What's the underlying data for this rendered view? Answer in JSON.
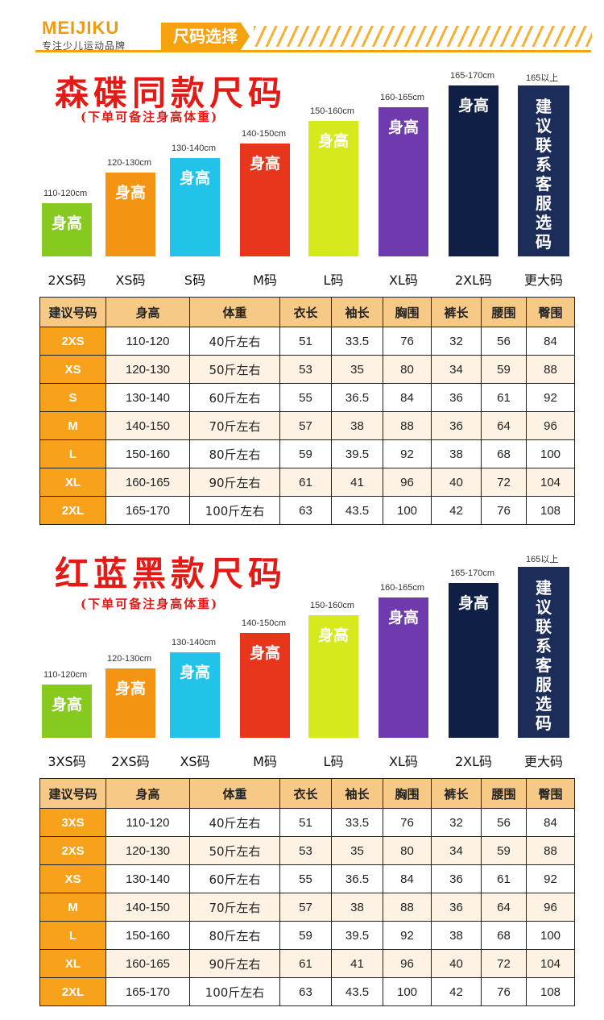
{
  "header": {
    "brand": "MEIJIKU",
    "slogan": "专注少儿运动品牌",
    "tag": "尺码选择"
  },
  "colors": {
    "accent": "#f6a20f",
    "title_red": "#e41a16"
  },
  "sections": [
    {
      "title": "森碟同款尺码",
      "note": "(下单可备注身高体重)",
      "bars": [
        {
          "range": "110-120cm",
          "text": "身高",
          "size": "2XS码",
          "color": "#86c91f"
        },
        {
          "range": "120-130cm",
          "text": "身高",
          "size": "XS码",
          "color": "#f39413"
        },
        {
          "range": "130-140cm",
          "text": "身高",
          "size": "S码",
          "color": "#22c3e8"
        },
        {
          "range": "140-150cm",
          "text": "身高",
          "size": "M码",
          "color": "#e8361c"
        },
        {
          "range": "150-160cm",
          "text": "身高",
          "size": "L码",
          "color": "#d5e91c"
        },
        {
          "range": "160-165cm",
          "text": "身高",
          "size": "XL码",
          "color": "#6e3aad"
        },
        {
          "range": "165-170cm",
          "text": "身高",
          "size": "2XL码",
          "color": "#0f1f45"
        },
        {
          "range": "165以上",
          "text": "建议联系客服选码",
          "size": "更大码",
          "color": "#1c2d5a"
        }
      ],
      "table": {
        "headers": [
          "建议号码",
          "身高",
          "体重",
          "衣长",
          "袖长",
          "胸围",
          "裤长",
          "腰围",
          "臀围"
        ],
        "rows": [
          [
            "2XS",
            "110-120",
            "40斤左右",
            "51",
            "33.5",
            "76",
            "32",
            "56",
            "84"
          ],
          [
            "XS",
            "120-130",
            "50斤左右",
            "53",
            "35",
            "80",
            "34",
            "59",
            "88"
          ],
          [
            "S",
            "130-140",
            "60斤左右",
            "55",
            "36.5",
            "84",
            "36",
            "61",
            "92"
          ],
          [
            "M",
            "140-150",
            "70斤左右",
            "57",
            "38",
            "88",
            "36",
            "64",
            "96"
          ],
          [
            "L",
            "150-160",
            "80斤左右",
            "59",
            "39.5",
            "92",
            "38",
            "68",
            "100"
          ],
          [
            "XL",
            "160-165",
            "90斤左右",
            "61",
            "41",
            "96",
            "40",
            "72",
            "104"
          ],
          [
            "2XL",
            "165-170",
            "100斤左右",
            "63",
            "43.5",
            "100",
            "42",
            "76",
            "108"
          ]
        ]
      }
    },
    {
      "title": "红蓝黑款尺码",
      "note": "(下单可备注身高体重)",
      "bars": [
        {
          "range": "110-120cm",
          "text": "身高",
          "size": "3XS码",
          "color": "#86c91f"
        },
        {
          "range": "120-130cm",
          "text": "身高",
          "size": "2XS码",
          "color": "#f39413"
        },
        {
          "range": "130-140cm",
          "text": "身高",
          "size": "XS码",
          "color": "#22c3e8"
        },
        {
          "range": "140-150cm",
          "text": "身高",
          "size": "M码",
          "color": "#e8361c"
        },
        {
          "range": "150-160cm",
          "text": "身高",
          "size": "L码",
          "color": "#d5e91c"
        },
        {
          "range": "160-165cm",
          "text": "身高",
          "size": "XL码",
          "color": "#6e3aad"
        },
        {
          "range": "165-170cm",
          "text": "身高",
          "size": "2XL码",
          "color": "#0f1f45"
        },
        {
          "range": "165以上",
          "text": "建议联系客服选码",
          "size": "更大码",
          "color": "#1c2d5a"
        }
      ],
      "table": {
        "headers": [
          "建议号码",
          "身高",
          "体重",
          "衣长",
          "袖长",
          "胸围",
          "裤长",
          "腰围",
          "臀围"
        ],
        "rows": [
          [
            "3XS",
            "110-120",
            "40斤左右",
            "51",
            "33.5",
            "76",
            "32",
            "56",
            "84"
          ],
          [
            "2XS",
            "120-130",
            "50斤左右",
            "53",
            "35",
            "80",
            "34",
            "59",
            "88"
          ],
          [
            "XS",
            "130-140",
            "60斤左右",
            "55",
            "36.5",
            "84",
            "36",
            "61",
            "92"
          ],
          [
            "M",
            "140-150",
            "70斤左右",
            "57",
            "38",
            "88",
            "36",
            "64",
            "96"
          ],
          [
            "L",
            "150-160",
            "80斤左右",
            "59",
            "39.5",
            "92",
            "38",
            "68",
            "100"
          ],
          [
            "XL",
            "160-165",
            "90斤左右",
            "61",
            "41",
            "96",
            "40",
            "72",
            "104"
          ],
          [
            "2XL",
            "165-170",
            "100斤左右",
            "63",
            "43.5",
            "100",
            "42",
            "76",
            "108"
          ]
        ]
      }
    }
  ]
}
